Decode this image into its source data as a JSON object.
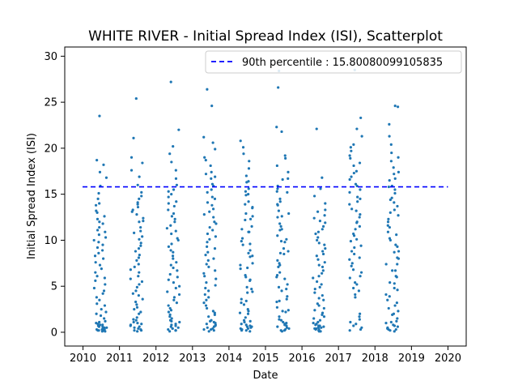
{
  "chart_data": {
    "type": "scatter",
    "title": "WHITE RIVER - Initial Spread Index (ISI), Scatterplot",
    "xlabel": "Date",
    "ylabel": "Initial Spread Index (ISI)",
    "xlim": [
      2009.5,
      2020.5
    ],
    "ylim": [
      -1.5,
      31.0
    ],
    "x_ticks": [
      "2010",
      "2011",
      "2012",
      "2013",
      "2014",
      "2015",
      "2016",
      "2017",
      "2018",
      "2019",
      "2020"
    ],
    "y_ticks": [
      "0",
      "5",
      "10",
      "15",
      "20",
      "25",
      "30"
    ],
    "grid": false,
    "legend_position": "top-right",
    "point_color": "#1f77b4",
    "reference_line": {
      "label": "90th percentile : 15.80080099105835",
      "y": 15.80080099105835,
      "color": "#0000ff",
      "style": "dashed"
    },
    "season_start_fraction": 0.3,
    "season_end_fraction": 0.65,
    "series": [
      {
        "year": 2010,
        "values": [
          0.1,
          0.2,
          0.3,
          0.5,
          0.6,
          0.8,
          1.0,
          1.2,
          0.4,
          0.3,
          0.2,
          0.7,
          1.5,
          2.0,
          2.5,
          3.1,
          3.8,
          4.5,
          5.2,
          5.9,
          6.5,
          7.3,
          8.0,
          8.6,
          9.2,
          9.8,
          10.3,
          10.9,
          11.4,
          12.0,
          12.6,
          13.2,
          13.8,
          14.5,
          15.1,
          15.9,
          16.8,
          17.4,
          18.2,
          18.7,
          23.5,
          0.1,
          0.4,
          0.9,
          1.8,
          2.9,
          4.2,
          5.6,
          6.9,
          8.3,
          9.5,
          10.6,
          11.8,
          13.0,
          0.2,
          0.6,
          1.1,
          2.2,
          3.5,
          4.8,
          6.1,
          7.6,
          8.9,
          10.0,
          11.1,
          12.3,
          14.0,
          0.3,
          0.5,
          0.8
        ]
      },
      {
        "year": 2011,
        "values": [
          0.1,
          0.2,
          0.4,
          0.6,
          0.8,
          1.0,
          1.3,
          1.6,
          2.0,
          2.5,
          3.0,
          3.6,
          4.2,
          4.9,
          5.5,
          6.1,
          6.8,
          7.4,
          8.1,
          8.8,
          9.4,
          10.1,
          10.8,
          11.4,
          12.1,
          12.8,
          13.3,
          13.9,
          14.5,
          15.2,
          16.0,
          16.9,
          17.6,
          18.4,
          19.0,
          21.1,
          25.4,
          0.3,
          0.5,
          0.9,
          1.4,
          2.2,
          3.3,
          4.5,
          5.8,
          7.1,
          8.4,
          9.7,
          11.0,
          12.4,
          13.6,
          14.8,
          0.2,
          0.7,
          1.1,
          2.7,
          4.0,
          5.2,
          6.5,
          7.8,
          9.1,
          10.4,
          12.0,
          13.1,
          14.1
        ]
      },
      {
        "year": 2012,
        "values": [
          0.1,
          0.2,
          0.4,
          0.6,
          0.9,
          1.2,
          1.5,
          1.9,
          2.4,
          2.9,
          3.5,
          4.1,
          4.8,
          5.4,
          6.0,
          6.7,
          7.3,
          8.0,
          8.7,
          9.3,
          10.0,
          10.7,
          11.3,
          12.0,
          12.6,
          13.3,
          14.0,
          14.7,
          15.3,
          16.0,
          16.7,
          17.6,
          18.5,
          19.4,
          20.2,
          22.0,
          27.2,
          0.3,
          0.5,
          0.8,
          1.1,
          1.7,
          2.6,
          3.8,
          5.0,
          6.3,
          7.6,
          8.9,
          10.2,
          11.6,
          12.9,
          14.2,
          15.5,
          0.2,
          0.7,
          1.3,
          2.2,
          3.2,
          4.4,
          5.7,
          7.0,
          8.3,
          9.6,
          11.0,
          12.3,
          13.7,
          15.0,
          0.4
        ]
      },
      {
        "year": 2013,
        "values": [
          0.1,
          0.3,
          0.5,
          0.7,
          1.0,
          1.3,
          1.7,
          2.1,
          2.6,
          3.2,
          3.8,
          4.5,
          5.1,
          5.8,
          6.4,
          7.1,
          7.8,
          8.4,
          9.1,
          9.8,
          10.4,
          11.1,
          11.8,
          12.5,
          13.1,
          13.8,
          14.5,
          15.2,
          15.9,
          16.7,
          17.4,
          18.1,
          19.0,
          19.9,
          20.6,
          21.2,
          24.6,
          26.4,
          0.2,
          0.4,
          0.8,
          1.2,
          1.9,
          2.9,
          4.1,
          5.4,
          6.7,
          8.0,
          9.3,
          10.7,
          12.0,
          13.4,
          14.7,
          16.1,
          17.2,
          0.6,
          1.1,
          2.3,
          3.5,
          4.8,
          6.1,
          7.4,
          8.7,
          10.1,
          11.4,
          12.8,
          14.1,
          15.5,
          16.9,
          18.7,
          0.3,
          0.9
        ]
      },
      {
        "year": 2014,
        "values": [
          0.1,
          0.2,
          0.4,
          0.6,
          0.9,
          1.2,
          1.6,
          2.0,
          2.5,
          3.0,
          3.6,
          4.3,
          4.9,
          5.6,
          6.2,
          6.9,
          7.5,
          8.2,
          8.9,
          9.5,
          10.2,
          10.9,
          11.5,
          12.2,
          12.9,
          13.5,
          14.2,
          14.9,
          15.6,
          16.3,
          17.0,
          17.8,
          18.6,
          19.4,
          20.1,
          20.8,
          0.3,
          0.5,
          0.8,
          1.3,
          2.1,
          3.2,
          4.4,
          5.7,
          7.0,
          8.3,
          9.6,
          10.9,
          12.3,
          13.6,
          15.0,
          16.4,
          0.2,
          0.7,
          1.1,
          2.3,
          3.4,
          4.7,
          6.0,
          7.3,
          8.6,
          9.9,
          11.2,
          12.6,
          13.9,
          15.3,
          0.4,
          0.6
        ]
      },
      {
        "year": 2015,
        "values": [
          0.1,
          0.2,
          0.4,
          0.7,
          1.0,
          1.3,
          1.7,
          2.2,
          2.7,
          3.3,
          3.9,
          4.5,
          5.2,
          5.8,
          6.5,
          7.1,
          7.8,
          8.5,
          9.1,
          9.8,
          10.5,
          11.1,
          11.8,
          12.5,
          13.2,
          13.8,
          14.5,
          15.2,
          15.9,
          16.6,
          17.4,
          18.1,
          18.9,
          19.2,
          21.8,
          22.3,
          26.6,
          28.4,
          0.3,
          0.5,
          0.9,
          1.4,
          2.3,
          3.4,
          4.7,
          6.0,
          7.3,
          8.6,
          9.9,
          11.2,
          12.6,
          13.9,
          15.3,
          16.7,
          0.6,
          1.1,
          2.4,
          3.6,
          4.9,
          6.2,
          7.5,
          8.8,
          10.1,
          11.5,
          12.9,
          14.2,
          15.6,
          0.2,
          0.8
        ]
      },
      {
        "year": 2016,
        "values": [
          0.1,
          0.2,
          0.3,
          0.5,
          0.7,
          1.0,
          1.3,
          1.7,
          2.1,
          2.6,
          3.1,
          3.7,
          4.3,
          4.9,
          5.5,
          6.1,
          6.7,
          7.3,
          7.9,
          8.5,
          9.1,
          9.7,
          10.3,
          10.9,
          11.5,
          12.1,
          12.7,
          13.3,
          14.0,
          14.8,
          15.6,
          16.8,
          22.1,
          0.2,
          0.4,
          0.6,
          0.9,
          1.5,
          2.4,
          3.5,
          4.7,
          5.9,
          7.1,
          8.3,
          9.5,
          10.7,
          11.9,
          13.1,
          0.3,
          0.5,
          0.8,
          1.1,
          1.9,
          2.9,
          4.0,
          5.2,
          6.4,
          7.6,
          8.8,
          10.0,
          11.2,
          12.4,
          0.1,
          0.4,
          0.7
        ]
      },
      {
        "year": 2017,
        "values": [
          0.2,
          0.5,
          0.9,
          1.4,
          2.0,
          3.8,
          4.5,
          5.2,
          5.9,
          6.5,
          7.2,
          7.9,
          8.5,
          9.2,
          9.9,
          10.5,
          11.2,
          11.9,
          12.5,
          13.2,
          13.9,
          14.5,
          15.2,
          15.9,
          16.6,
          17.3,
          18.1,
          18.9,
          19.7,
          20.4,
          21.3,
          22.1,
          23.3,
          28.5,
          0.3,
          1.1,
          1.7,
          4.1,
          5.4,
          6.8,
          8.1,
          9.4,
          10.7,
          12.0,
          13.4,
          14.7,
          16.1,
          17.5,
          19.2,
          0.7,
          4.8,
          6.1,
          7.5,
          8.8,
          10.1,
          11.5,
          12.8,
          14.2,
          15.5,
          16.9,
          18.4,
          20.1
        ]
      },
      {
        "year": 2018,
        "values": [
          0.1,
          0.3,
          0.5,
          0.8,
          1.1,
          1.5,
          2.0,
          2.6,
          3.2,
          3.9,
          4.6,
          5.3,
          6.0,
          6.7,
          7.4,
          8.1,
          8.8,
          9.5,
          10.2,
          10.9,
          11.6,
          12.3,
          13.0,
          13.7,
          14.4,
          15.1,
          15.8,
          16.5,
          17.2,
          17.9,
          18.6,
          19.5,
          20.4,
          21.3,
          22.6,
          24.5,
          24.6,
          0.2,
          0.4,
          0.7,
          1.2,
          1.9,
          2.9,
          4.1,
          5.4,
          6.7,
          8.0,
          9.3,
          10.6,
          12.0,
          13.3,
          14.6,
          15.9,
          17.4,
          19.0,
          0.6,
          1.0,
          2.3,
          3.5,
          4.8,
          6.1,
          7.4,
          8.7,
          10.0,
          11.4,
          12.7,
          14.1,
          15.5,
          16.7,
          0.3
        ]
      }
    ]
  }
}
